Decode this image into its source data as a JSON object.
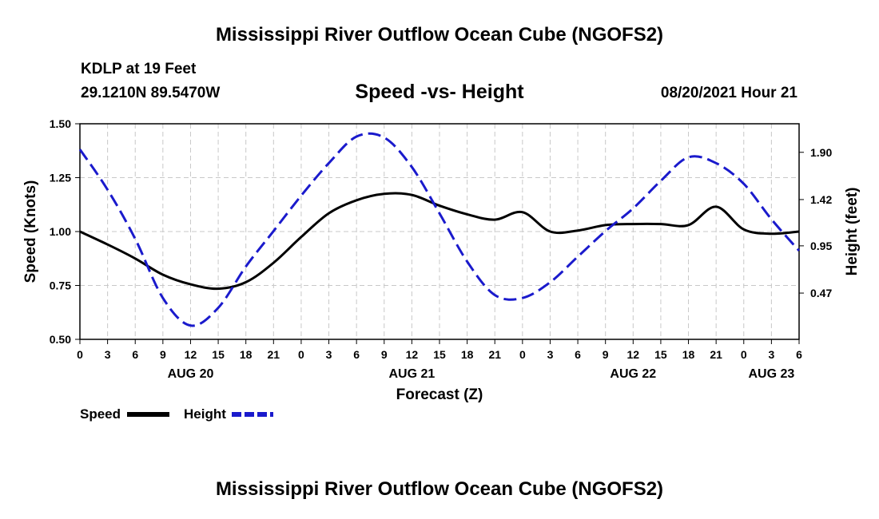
{
  "header": {
    "title": "Mississippi River Outflow Ocean Cube (NGOFS2)",
    "station": "KDLP at 19 Feet",
    "coords": "29.1210N  89.5470W",
    "chart_title": "Speed -vs- Height",
    "datetime": "08/20/2021 Hour 21"
  },
  "footer": {
    "title": "Mississippi River Outflow Ocean Cube (NGOFS2)"
  },
  "legend": {
    "speed_label": "Speed",
    "height_label": "Height"
  },
  "colors": {
    "speed": "#000000",
    "height": "#1a1acc",
    "grid": "#c8c8c8"
  },
  "chart_data": {
    "type": "line",
    "xlabel": "Forecast (Z)",
    "ylabel_left": "Speed (Knots)",
    "ylabel_right": "Height (feet)",
    "x_range_hours": [
      0,
      78
    ],
    "x_tick_labels": [
      "0",
      "3",
      "6",
      "9",
      "12",
      "15",
      "18",
      "21",
      "0",
      "3",
      "6",
      "9",
      "12",
      "15",
      "18",
      "21",
      "0",
      "3",
      "6",
      "9",
      "12",
      "15",
      "18",
      "21",
      "0",
      "3",
      "6"
    ],
    "date_labels": [
      {
        "label": "AUG 20",
        "hour": 12
      },
      {
        "label": "AUG 21",
        "hour": 36
      },
      {
        "label": "AUG 22",
        "hour": 60
      },
      {
        "label": "AUG 23",
        "hour": 75
      }
    ],
    "y_left": {
      "min": 0.5,
      "max": 1.5,
      "ticks": [
        "0.50",
        "0.75",
        "1.00",
        "1.25",
        "1.50"
      ]
    },
    "y_right": {
      "min": 0.0,
      "max": 2.19,
      "ticks": [
        "0.47",
        "0.95",
        "1.42",
        "1.90"
      ]
    },
    "grid": true,
    "series": [
      {
        "name": "Speed",
        "axis": "left",
        "style": "solid",
        "x": [
          0,
          3,
          6,
          9,
          12,
          15,
          18,
          21,
          24,
          27,
          30,
          33,
          36,
          39,
          42,
          45,
          48,
          51,
          54,
          57,
          60,
          63,
          66,
          69,
          72,
          75,
          78
        ],
        "values": [
          1.0,
          0.94,
          0.875,
          0.8,
          0.755,
          0.735,
          0.765,
          0.855,
          0.975,
          1.085,
          1.145,
          1.175,
          1.17,
          1.12,
          1.08,
          1.055,
          1.09,
          1.0,
          1.005,
          1.03,
          1.035,
          1.035,
          1.03,
          1.115,
          1.01,
          0.99,
          1.0
        ]
      },
      {
        "name": "Height",
        "axis": "right",
        "style": "dashed",
        "x": [
          0,
          3,
          6,
          9,
          12,
          15,
          18,
          21,
          24,
          27,
          30,
          33,
          36,
          39,
          42,
          45,
          48,
          51,
          54,
          57,
          60,
          63,
          66,
          69,
          72,
          75,
          78
        ],
        "values": [
          1.93,
          1.52,
          1.02,
          0.42,
          0.14,
          0.32,
          0.74,
          1.1,
          1.46,
          1.79,
          2.06,
          2.05,
          1.75,
          1.28,
          0.79,
          0.45,
          0.42,
          0.58,
          0.84,
          1.1,
          1.33,
          1.61,
          1.85,
          1.79,
          1.58,
          1.22,
          0.9
        ]
      }
    ]
  }
}
